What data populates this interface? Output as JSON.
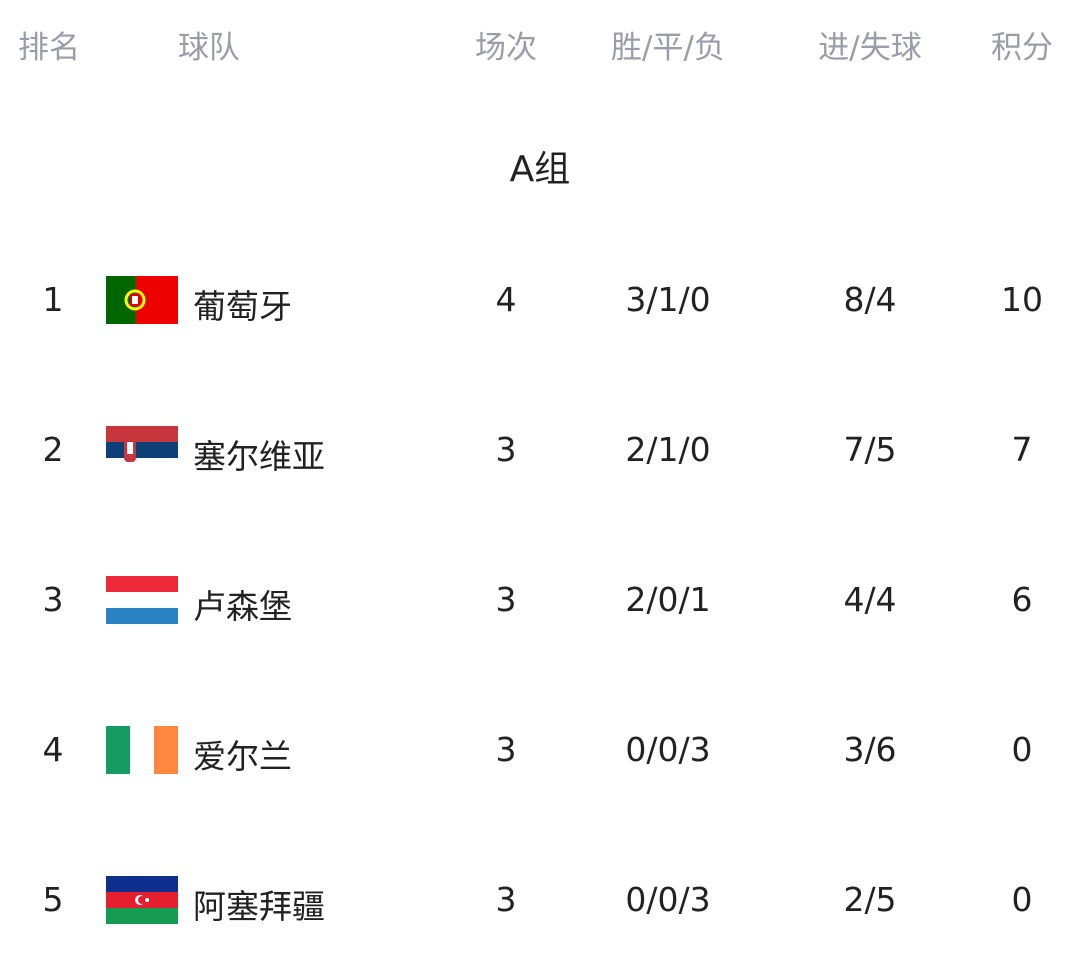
{
  "header": {
    "rank": "排名",
    "team": "球队",
    "played": "场次",
    "wdl": "胜/平/负",
    "goals": "进/失球",
    "points": "积分"
  },
  "group_title": "A组",
  "rows": [
    {
      "rank": "1",
      "flag": "portugal-flag-icon",
      "team": "葡萄牙",
      "played": "4",
      "wdl": "3/1/0",
      "goals": "8/4",
      "points": "10"
    },
    {
      "rank": "2",
      "flag": "serbia-flag-icon",
      "team": "塞尔维亚",
      "played": "3",
      "wdl": "2/1/0",
      "goals": "7/5",
      "points": "7"
    },
    {
      "rank": "3",
      "flag": "luxembourg-flag-icon",
      "team": "卢森堡",
      "played": "3",
      "wdl": "2/0/1",
      "goals": "4/4",
      "points": "6"
    },
    {
      "rank": "4",
      "flag": "ireland-flag-icon",
      "team": "爱尔兰",
      "played": "3",
      "wdl": "0/0/3",
      "goals": "3/6",
      "points": "0"
    },
    {
      "rank": "5",
      "flag": "azerbaijan-flag-icon",
      "team": "阿塞拜疆",
      "played": "3",
      "wdl": "0/0/3",
      "goals": "2/5",
      "points": "0"
    }
  ]
}
